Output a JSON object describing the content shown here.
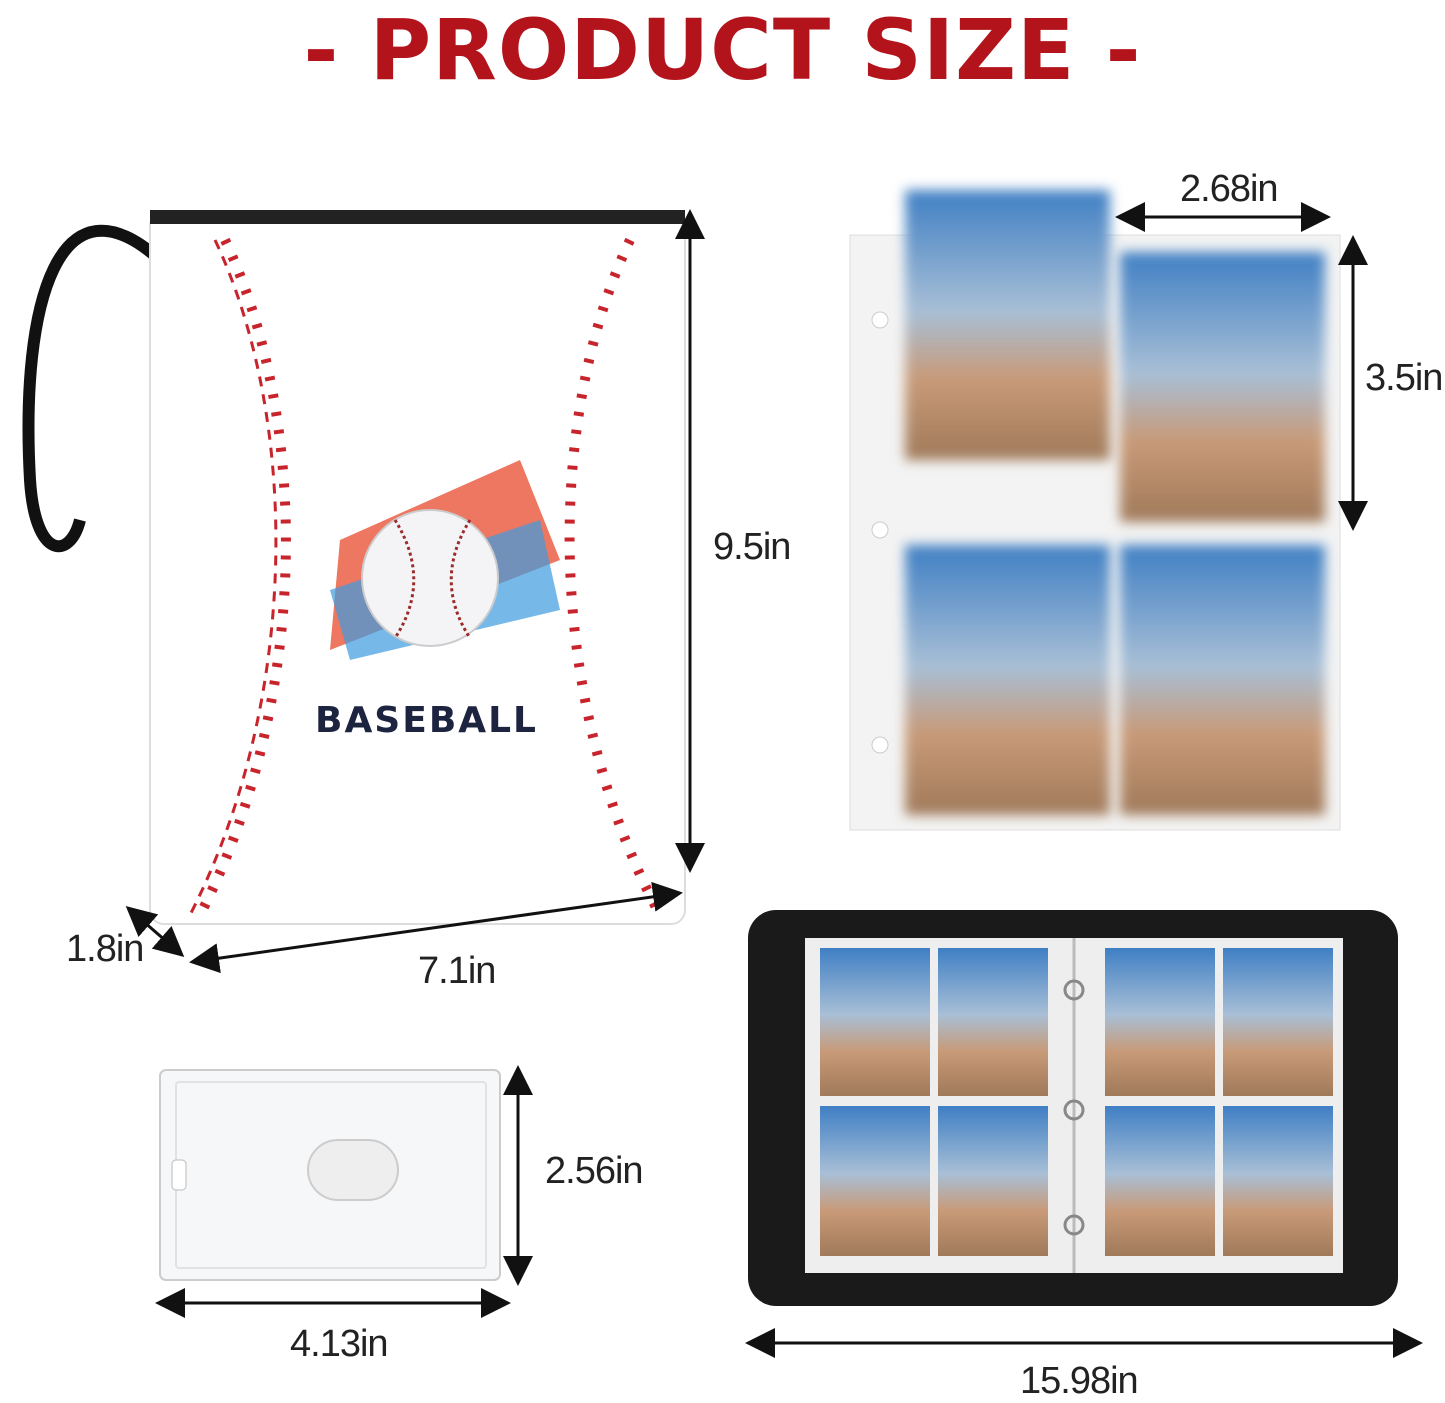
{
  "title": "- PRODUCT SIZE -",
  "binder": {
    "brand_text": "BASEBALL",
    "height": "9.5in",
    "width": "7.1in",
    "depth": "1.8in"
  },
  "pocket": {
    "width": "2.68in",
    "height": "3.5in"
  },
  "toploader": {
    "height": "2.56in",
    "width": "4.13in"
  },
  "open_binder": {
    "width": "15.98in"
  },
  "colors": {
    "title": "#b3141c",
    "stitch": "#c8242c",
    "binder_interior": "#1a1a1a"
  }
}
